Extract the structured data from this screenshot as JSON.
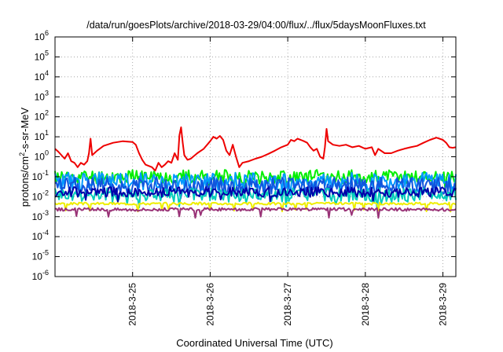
{
  "chart_data": {
    "type": "line",
    "title": "/data/run/goesPlots/archive/2018-03-29/04:00/flux/../flux/5daysMoonFluxes.txt",
    "xlabel": "Coordinated Universal Time (UTC)",
    "ylabel": "protons/cm2-s-sr-MeV",
    "y_scale": "log",
    "ylim": [
      1e-06,
      1000000.0
    ],
    "y_ticks": [
      {
        "base": "10",
        "exp": "-6"
      },
      {
        "base": "10",
        "exp": "-5"
      },
      {
        "base": "10",
        "exp": "-4"
      },
      {
        "base": "10",
        "exp": "-3"
      },
      {
        "base": "10",
        "exp": "-2"
      },
      {
        "base": "10",
        "exp": "-1"
      },
      {
        "base": "10",
        "exp": "0"
      },
      {
        "base": "10",
        "exp": "1"
      },
      {
        "base": "10",
        "exp": "2"
      },
      {
        "base": "10",
        "exp": "3"
      },
      {
        "base": "10",
        "exp": "4"
      },
      {
        "base": "10",
        "exp": "5"
      },
      {
        "base": "10",
        "exp": "6"
      }
    ],
    "xlim": [
      "2018-03-24T00:00",
      "2018-03-29T04:00"
    ],
    "x_ticks": [
      "2018-3-25",
      "2018-3-26",
      "2018-3-27",
      "2018-3-28",
      "2018-3-29"
    ],
    "grid": true,
    "legend": "none",
    "series": [
      {
        "color": "#ee0000",
        "points": [
          [
            "2018-03-24T00:00",
            2.5
          ],
          [
            "2018-03-24T01:00",
            1.8
          ],
          [
            "2018-03-24T02:00",
            1.2
          ],
          [
            "2018-03-24T03:00",
            0.8
          ],
          [
            "2018-03-24T04:00",
            1.5
          ],
          [
            "2018-03-24T05:00",
            0.6
          ],
          [
            "2018-03-24T06:00",
            0.5
          ],
          [
            "2018-03-24T07:00",
            0.3
          ],
          [
            "2018-03-24T08:00",
            0.5
          ],
          [
            "2018-03-24T09:00",
            0.4
          ],
          [
            "2018-03-24T10:00",
            0.6
          ],
          [
            "2018-03-24T10:30",
            1.5
          ],
          [
            "2018-03-24T11:00",
            8
          ],
          [
            "2018-03-24T11:30",
            1.2
          ],
          [
            "2018-03-24T13:00",
            2.0
          ],
          [
            "2018-03-24T15:00",
            3.5
          ],
          [
            "2018-03-24T18:00",
            5
          ],
          [
            "2018-03-24T21:00",
            6
          ],
          [
            "2018-03-25T00:00",
            5.5
          ],
          [
            "2018-03-25T01:00",
            4
          ],
          [
            "2018-03-25T02:00",
            1.5
          ],
          [
            "2018-03-25T03:00",
            0.7
          ],
          [
            "2018-03-25T04:00",
            0.4
          ],
          [
            "2018-03-25T06:00",
            0.3
          ],
          [
            "2018-03-25T07:00",
            0.2
          ],
          [
            "2018-03-25T08:00",
            0.5
          ],
          [
            "2018-03-25T09:00",
            0.3
          ],
          [
            "2018-03-25T10:00",
            0.4
          ],
          [
            "2018-03-25T11:00",
            0.6
          ],
          [
            "2018-03-25T12:00",
            0.5
          ],
          [
            "2018-03-25T13:00",
            1.5
          ],
          [
            "2018-03-25T14:00",
            0.7
          ],
          [
            "2018-03-25T14:30",
            12
          ],
          [
            "2018-03-25T15:00",
            30
          ],
          [
            "2018-03-25T15:30",
            5
          ],
          [
            "2018-03-25T16:00",
            1.2
          ],
          [
            "2018-03-25T17:00",
            0.7
          ],
          [
            "2018-03-25T18:00",
            0.8
          ],
          [
            "2018-03-25T20:00",
            1.5
          ],
          [
            "2018-03-25T22:00",
            2.5
          ],
          [
            "2018-03-26T00:00",
            6
          ],
          [
            "2018-03-26T01:00",
            10
          ],
          [
            "2018-03-26T02:00",
            8
          ],
          [
            "2018-03-26T03:00",
            11
          ],
          [
            "2018-03-26T04:00",
            7
          ],
          [
            "2018-03-26T05:00",
            2.0
          ],
          [
            "2018-03-26T06:00",
            1.2
          ],
          [
            "2018-03-26T07:00",
            4
          ],
          [
            "2018-03-26T08:00",
            1.0
          ],
          [
            "2018-03-26T09:00",
            0.3
          ],
          [
            "2018-03-26T10:00",
            0.5
          ],
          [
            "2018-03-26T12:00",
            0.6
          ],
          [
            "2018-03-26T14:00",
            0.8
          ],
          [
            "2018-03-26T16:00",
            1.0
          ],
          [
            "2018-03-26T18:00",
            1.4
          ],
          [
            "2018-03-26T20:00",
            2.0
          ],
          [
            "2018-03-26T22:00",
            3.0
          ],
          [
            "2018-03-27T00:00",
            4
          ],
          [
            "2018-03-27T01:00",
            7
          ],
          [
            "2018-03-27T02:00",
            6
          ],
          [
            "2018-03-27T03:00",
            8
          ],
          [
            "2018-03-27T04:00",
            7
          ],
          [
            "2018-03-27T05:00",
            6
          ],
          [
            "2018-03-27T06:00",
            5
          ],
          [
            "2018-03-27T07:00",
            3
          ],
          [
            "2018-03-27T08:00",
            2
          ],
          [
            "2018-03-27T09:00",
            2.5
          ],
          [
            "2018-03-27T10:00",
            1.0
          ],
          [
            "2018-03-27T11:00",
            0.8
          ],
          [
            "2018-03-27T11:30",
            3
          ],
          [
            "2018-03-27T12:00",
            25
          ],
          [
            "2018-03-27T12:30",
            6
          ],
          [
            "2018-03-27T14:00",
            4
          ],
          [
            "2018-03-27T16:00",
            3.5
          ],
          [
            "2018-03-27T18:00",
            4
          ],
          [
            "2018-03-27T20:00",
            3
          ],
          [
            "2018-03-27T22:00",
            3.5
          ],
          [
            "2018-03-28T00:00",
            2.5
          ],
          [
            "2018-03-28T02:00",
            3
          ],
          [
            "2018-03-28T03:00",
            1.2
          ],
          [
            "2018-03-28T04:00",
            2.5
          ],
          [
            "2018-03-28T06:00",
            1.5
          ],
          [
            "2018-03-28T08:00",
            1.5
          ],
          [
            "2018-03-28T10:00",
            2.0
          ],
          [
            "2018-03-28T12:00",
            2.5
          ],
          [
            "2018-03-28T14:00",
            3
          ],
          [
            "2018-03-28T16:00",
            3.5
          ],
          [
            "2018-03-28T18:00",
            5
          ],
          [
            "2018-03-28T20:00",
            7
          ],
          [
            "2018-03-28T22:00",
            9
          ],
          [
            "2018-03-29T00:00",
            7
          ],
          [
            "2018-03-29T01:00",
            5
          ],
          [
            "2018-03-29T02:00",
            3
          ],
          [
            "2018-03-29T03:00",
            2.8
          ],
          [
            "2018-03-29T04:00",
            3
          ]
        ]
      },
      {
        "color": "#00ee00",
        "base": 0.1,
        "amp": 0.35,
        "seed": 11
      },
      {
        "color": "#0099ff",
        "base": 0.06,
        "amp": 0.45,
        "seed": 23
      },
      {
        "color": "#1155dd",
        "base": 0.035,
        "amp": 0.45,
        "seed": 37
      },
      {
        "color": "#00ccbb",
        "base": 0.012,
        "amp": 0.35,
        "seed": 41
      },
      {
        "color": "#0000aa",
        "base": 0.017,
        "amp": 0.25,
        "seed": 53
      },
      {
        "color": "#eeee00",
        "base": 0.0045,
        "amp": 0.06,
        "seed": 67
      },
      {
        "color": "#993377",
        "base": 0.0023,
        "amp": 0.08,
        "seed": 79
      }
    ]
  }
}
